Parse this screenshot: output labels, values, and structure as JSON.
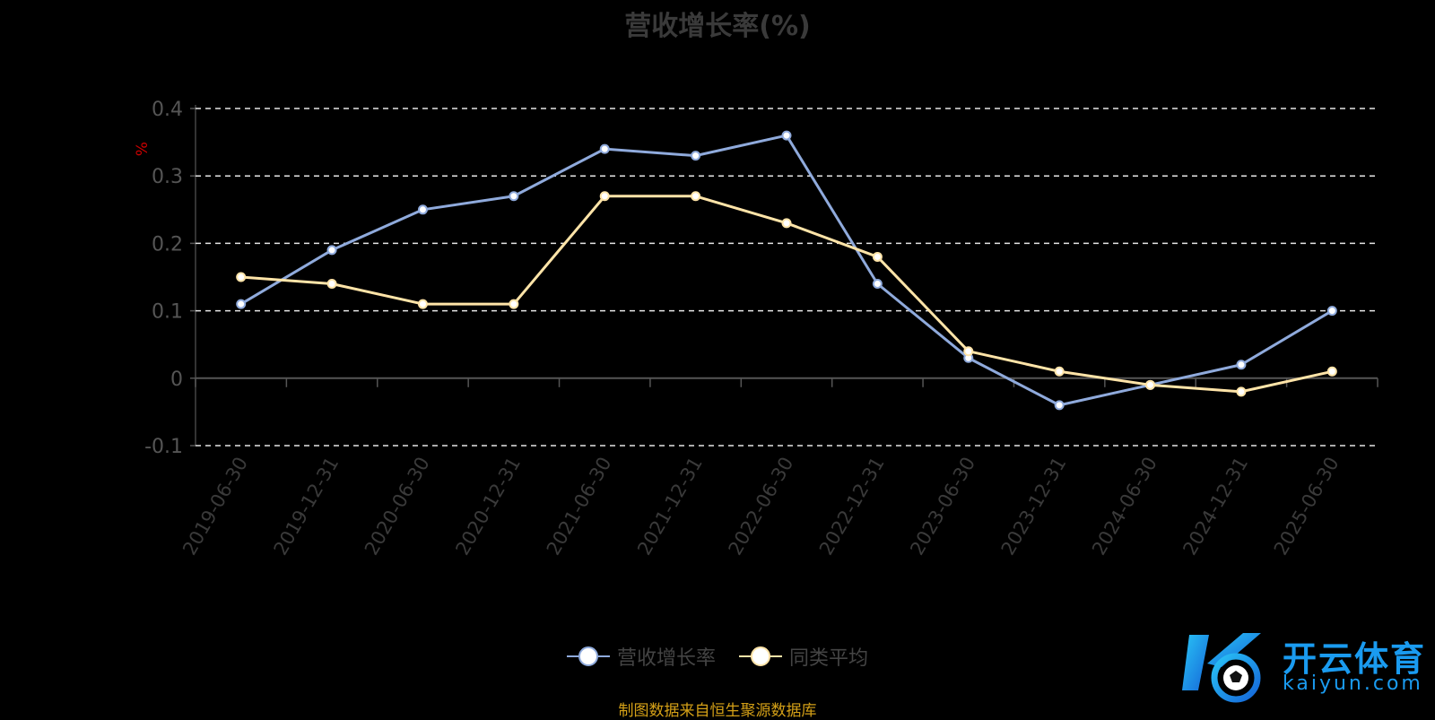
{
  "title": "营收增长率(%)",
  "chart_data": {
    "type": "line",
    "title": "营收增长率(%)",
    "ylabel": "%",
    "xlabel": "",
    "ylim": [
      -0.1,
      0.4
    ],
    "yticks": [
      -0.1,
      0,
      0.1,
      0.2,
      0.3,
      0.4
    ],
    "ytick_labels": [
      "-0.1",
      "0",
      "0.1",
      "0.2",
      "0.3",
      "0.4"
    ],
    "grid": true,
    "legend_position": "bottom",
    "categories": [
      "2019-06-30",
      "2019-12-31",
      "2020-06-30",
      "2020-12-31",
      "2021-06-30",
      "2021-12-31",
      "2022-06-30",
      "2022-12-31",
      "2023-06-30",
      "2023-12-31",
      "2024-06-30",
      "2024-12-31",
      "2025-06-30"
    ],
    "series": [
      {
        "name": "营收增长率",
        "color": "#8faadc",
        "values": [
          0.11,
          0.19,
          0.25,
          0.27,
          0.34,
          0.33,
          0.36,
          0.14,
          0.03,
          -0.04,
          -0.01,
          0.02,
          0.1
        ]
      },
      {
        "name": "同类平均",
        "color": "#ffe4a8",
        "values": [
          0.15,
          0.14,
          0.11,
          0.11,
          0.27,
          0.27,
          0.23,
          0.18,
          0.04,
          0.01,
          -0.01,
          -0.02,
          0.01
        ]
      }
    ]
  },
  "source_note": "制图数据来自恒生聚源数据库",
  "logo": {
    "name": "开云体育",
    "domain": "kaiyun.com"
  }
}
